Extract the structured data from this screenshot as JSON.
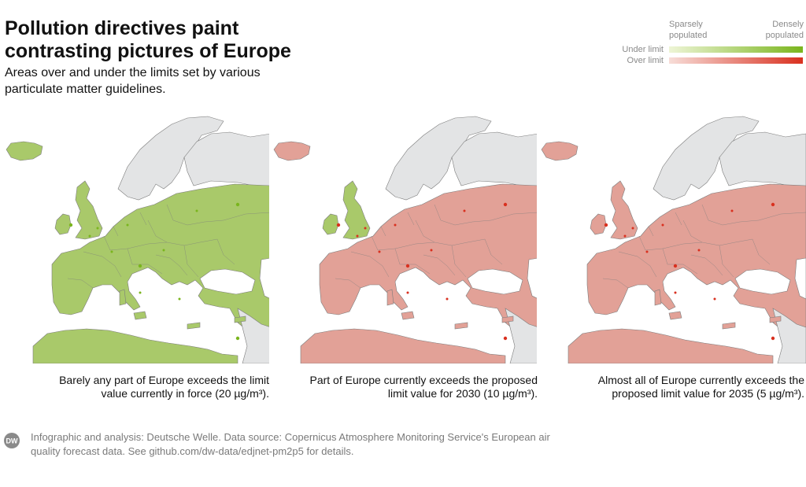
{
  "title": "Pollution directives paint contrasting pictures of Europe",
  "subtitle": "Areas over and under the limits set by various particulate matter guidelines.",
  "legend": {
    "sparse_label": "Sparsely populated",
    "dense_label": "Densely populated",
    "rows": [
      {
        "label": "Under limit",
        "color_light": "#eef5d6",
        "color_dark": "#7ab51d"
      },
      {
        "label": "Over limit",
        "color_light": "#f7ddd8",
        "color_dark": "#d9301f"
      }
    ]
  },
  "maps": [
    {
      "caption": "Barely any part of Europe exceeds the limit value currently in force (20 µg/m³).",
      "threshold_ug_m3": 20,
      "coverage": "mostly-under-limit"
    },
    {
      "caption": "Part of Europe currently exceeds the proposed limit value for 2030 (10 µg/m³).",
      "threshold_ug_m3": 10,
      "coverage": "mixed"
    },
    {
      "caption": "Almost all of Europe currently exceeds the proposed limit value for 2035 (5 µg/m³).",
      "threshold_ug_m3": 5,
      "coverage": "mostly-over-limit"
    }
  ],
  "colors": {
    "under": "#a9c96a",
    "over": "#e2a197",
    "hot_under": "#7ab51d",
    "hot_over": "#d9301f",
    "nodata": "#e3e4e5",
    "border": "#7c7c7c"
  },
  "footer": {
    "logo_text": "DW",
    "text": "Infographic and analysis: Deutsche Welle. Data source: Copernicus Atmosphere Monitoring Service's European air quality forecast data. See github.com/dw-data/edjnet-pm2p5 for details."
  }
}
